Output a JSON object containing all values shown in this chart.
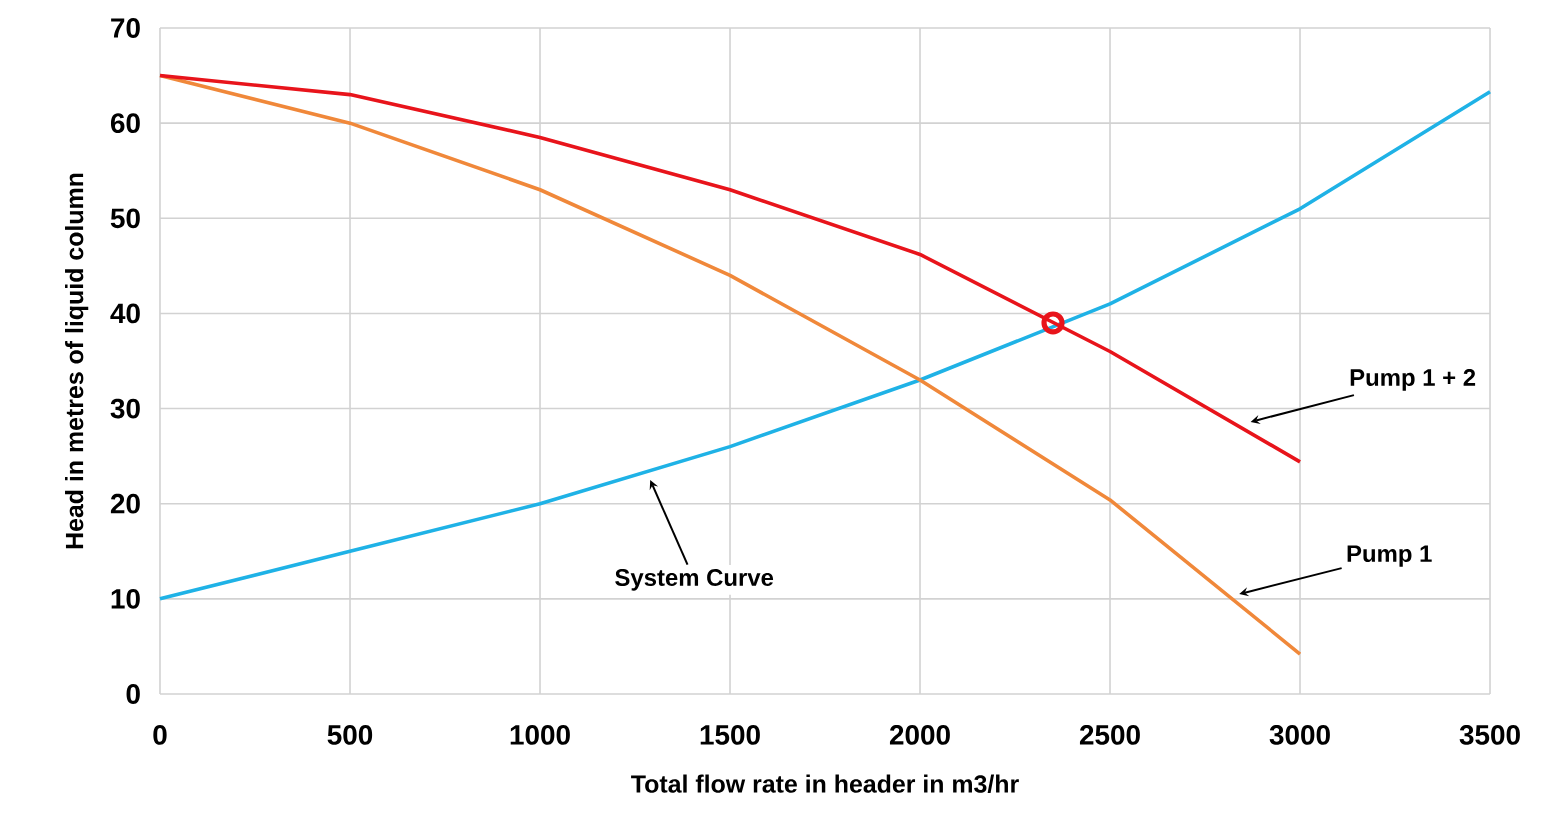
{
  "chart_data": {
    "type": "line",
    "xlabel": "Total flow rate in header in m3/hr",
    "ylabel": "Head in metres of liquid column",
    "xlim": [
      0,
      3500
    ],
    "ylim": [
      0,
      70
    ],
    "xticks": [
      0,
      500,
      1000,
      1500,
      2000,
      2500,
      3000,
      3500
    ],
    "yticks": [
      0,
      10,
      20,
      30,
      40,
      50,
      60,
      70
    ],
    "grid": true,
    "marker": "none",
    "line_style": "solid",
    "series": [
      {
        "color": "#1fb2e6",
        "x": [
          0,
          500,
          1000,
          1500,
          2000,
          2500,
          3000,
          3500
        ],
        "values": [
          10,
          15,
          20,
          26,
          33,
          41,
          51,
          63.3
        ]
      },
      {
        "color": "#f0883a",
        "x": [
          0,
          500,
          1000,
          1500,
          2000,
          2500,
          3000
        ],
        "values": [
          65,
          60,
          53,
          44,
          33,
          20.4,
          4.2
        ]
      },
      {
        "color": "#e8141b",
        "x": [
          0,
          500,
          1000,
          1500,
          2000,
          2500,
          3000
        ],
        "values": [
          65,
          63,
          58.5,
          53,
          46.2,
          36,
          24.4
        ]
      },
      {
        "type": "scatter",
        "marker": "circle",
        "color": "#e8141b",
        "x": [
          2350
        ],
        "values": [
          39
        ]
      }
    ],
    "annotations": [
      {
        "text": "Pump 1 + 2",
        "x": 2870,
        "y": 28.6
      },
      {
        "text": "Pump 1",
        "x": 2840,
        "y": 10.5
      },
      {
        "text": "System Curve",
        "x": 1290,
        "y": 22.5
      }
    ]
  }
}
